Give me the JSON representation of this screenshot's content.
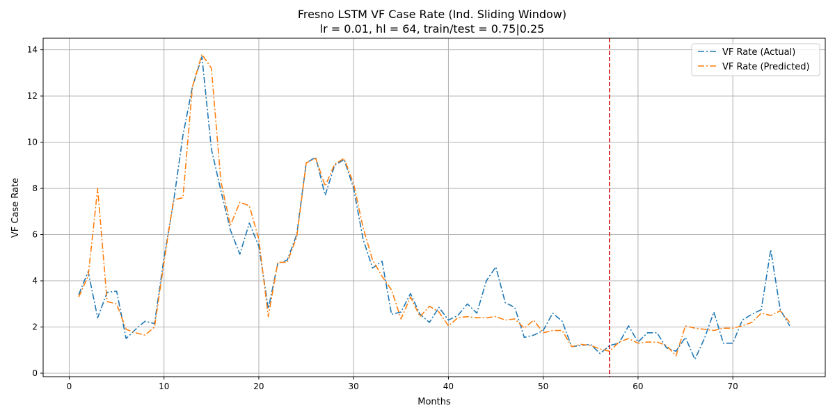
{
  "chart_data": {
    "type": "line",
    "title": "Fresno LSTM VF Case Rate (Ind. Sliding Window)",
    "subtitle": "lr = 0.01, hl = 64, train/test = 0.75|0.25",
    "xlabel": "Months",
    "ylabel": "VF Case Rate",
    "xlim": [
      -2.75,
      79.75
    ],
    "ylim": [
      -0.15,
      14.5
    ],
    "xticks": [
      0,
      10,
      20,
      30,
      40,
      50,
      60,
      70
    ],
    "yticks": [
      0,
      2,
      4,
      6,
      8,
      10,
      12,
      14
    ],
    "grid": true,
    "legend_position": "top-right",
    "vline": {
      "x": 57,
      "color": "#d62728",
      "style": "dashed"
    },
    "x": [
      1,
      2,
      3,
      4,
      5,
      6,
      7,
      8,
      9,
      10,
      11,
      12,
      13,
      14,
      15,
      16,
      17,
      18,
      19,
      20,
      21,
      22,
      23,
      24,
      25,
      26,
      27,
      28,
      29,
      30,
      31,
      32,
      33,
      34,
      35,
      36,
      37,
      38,
      39,
      40,
      41,
      42,
      43,
      44,
      45,
      46,
      47,
      48,
      49,
      50,
      51,
      52,
      53,
      54,
      55,
      56,
      57,
      58,
      59,
      60,
      61,
      62,
      63,
      64,
      65,
      66,
      67,
      68,
      69,
      70,
      71,
      72,
      73,
      74,
      75,
      76
    ],
    "series": [
      {
        "name": "VF Rate (Actual)",
        "color": "#1f77b4",
        "values": [
          3.4,
          4.4,
          2.4,
          3.5,
          3.55,
          1.5,
          1.9,
          2.25,
          2.15,
          5.0,
          7.4,
          10.3,
          12.4,
          13.7,
          9.7,
          7.9,
          6.2,
          5.15,
          6.5,
          5.5,
          2.8,
          4.75,
          4.9,
          6.0,
          9.1,
          9.35,
          7.7,
          9.0,
          9.25,
          8.0,
          5.8,
          4.55,
          4.85,
          2.55,
          2.65,
          3.45,
          2.55,
          2.2,
          2.85,
          2.3,
          2.5,
          3.0,
          2.6,
          4.0,
          4.6,
          3.05,
          2.85,
          1.55,
          1.65,
          1.85,
          2.6,
          2.25,
          1.15,
          1.2,
          1.25,
          0.85,
          1.2,
          1.3,
          2.05,
          1.35,
          1.75,
          1.75,
          1.1,
          0.95,
          1.55,
          0.6,
          1.5,
          2.65,
          1.3,
          1.3,
          2.3,
          2.55,
          2.75,
          5.35,
          2.75,
          2.05
        ]
      },
      {
        "name": "VF Rate (Predicted)",
        "color": "#ff7f0e",
        "values": [
          3.3,
          4.2,
          8.0,
          3.1,
          3.0,
          1.9,
          1.75,
          1.65,
          2.0,
          4.8,
          7.5,
          7.6,
          12.4,
          13.8,
          13.2,
          8.3,
          6.4,
          7.4,
          7.25,
          5.8,
          2.45,
          4.8,
          4.8,
          5.9,
          9.1,
          9.3,
          8.1,
          9.05,
          9.3,
          8.2,
          6.3,
          4.9,
          4.2,
          3.6,
          2.35,
          3.3,
          2.45,
          2.9,
          2.65,
          2.05,
          2.4,
          2.45,
          2.4,
          2.4,
          2.45,
          2.3,
          2.35,
          1.95,
          2.3,
          1.75,
          1.85,
          1.85,
          1.15,
          1.25,
          1.2,
          1.05,
          0.95,
          1.35,
          1.5,
          1.3,
          1.35,
          1.35,
          1.2,
          0.75,
          2.05,
          1.95,
          1.9,
          1.85,
          1.95,
          1.95,
          2.05,
          2.2,
          2.6,
          2.5,
          2.7,
          2.2
        ]
      }
    ]
  }
}
